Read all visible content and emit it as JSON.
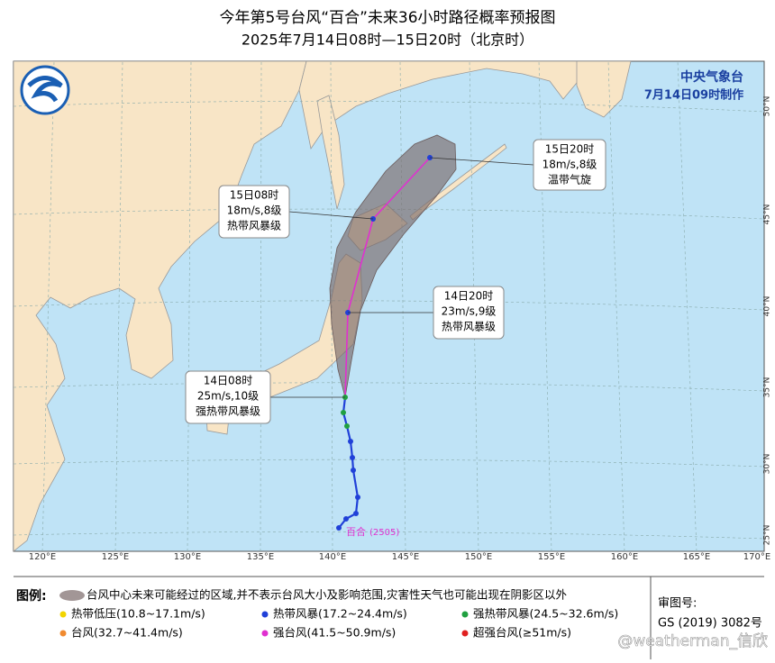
{
  "header": {
    "title": "今年第5号台风“百合”未来36小时路径概率预报图",
    "subtitle": "2025年7月14日08时—15日20时（北京时）"
  },
  "agency": {
    "name": "中央气象台",
    "issued": "7月14日09时制作"
  },
  "forecast_points": [
    {
      "time": "15日20时",
      "wind": "18m/s,8级",
      "grade": "温带气旋"
    },
    {
      "time": "15日08时",
      "wind": "18m/s,8级",
      "grade": "热带风暴级"
    },
    {
      "time": "14日20时",
      "wind": "23m/s,9级",
      "grade": "热带风暴级"
    },
    {
      "time": "14日08时",
      "wind": "25m/s,10级",
      "grade": "强热带风暴级"
    }
  ],
  "typhoon": {
    "name": "百合",
    "code": "(2505)"
  },
  "longitudes": [
    "120°E",
    "125°E",
    "130°E",
    "135°E",
    "140°E",
    "145°E",
    "150°E",
    "155°E",
    "160°E",
    "165°E",
    "170°E"
  ],
  "latitudes": [
    "25°N",
    "30°N",
    "35°N",
    "40°N",
    "45°N",
    "50°N"
  ],
  "legend": {
    "title": "图例:",
    "cone": "台风中心未来可能经过的区域,并不表示台风大小及影响范围,灾害性天气也可能出现在阴影区以外",
    "items": [
      {
        "label": "热带低压(10.8~17.1m/s)",
        "color": "#f2d400"
      },
      {
        "label": "热带风暴(17.2~24.4m/s)",
        "color": "#2040d8"
      },
      {
        "label": "强热带风暴(24.5~32.6m/s)",
        "color": "#20a040"
      },
      {
        "label": "台风(32.7~41.4m/s)",
        "color": "#f08a30"
      },
      {
        "label": "强台风(41.5~50.9m/s)",
        "color": "#e030d0"
      },
      {
        "label": "超强台风(≥51m/s)",
        "color": "#e02020"
      }
    ]
  },
  "approval": {
    "label": "审图号:",
    "number": "GS (2019) 3082号"
  },
  "watermark": "@weatherman_信欣"
}
